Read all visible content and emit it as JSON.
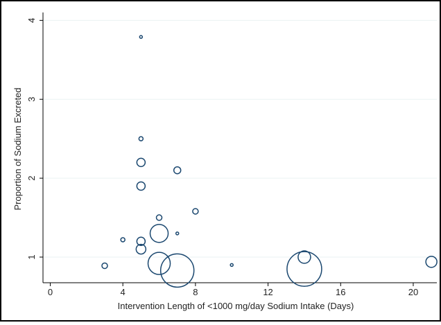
{
  "chart_data": {
    "type": "bubble",
    "xlabel": "Intervention Length of <1000 mg/day Sodium Intake (Days)",
    "ylabel": "Proportion of Sodium Excreted",
    "x": [
      3,
      4,
      5,
      5,
      5,
      5,
      5,
      5,
      6,
      6,
      6,
      7,
      7,
      7,
      8,
      10,
      14,
      14,
      21
    ],
    "values": [
      0.89,
      1.22,
      3.79,
      2.5,
      2.2,
      1.9,
      1.2,
      1.1,
      1.5,
      1.3,
      0.92,
      2.1,
      1.3,
      0.83,
      1.58,
      0.9,
      1.0,
      0.85,
      0.94
    ],
    "sizes": [
      16,
      9,
      4,
      9,
      36,
      36,
      36,
      49,
      16,
      169,
      256,
      25,
      4,
      576,
      16,
      4,
      81,
      625,
      64
    ],
    "color": "#1a476f",
    "xlim": [
      -0.4,
      21.3
    ],
    "ylim": [
      0.675,
      4.1
    ],
    "xticks": [
      0,
      4,
      8,
      12,
      16,
      20
    ],
    "yticks": [
      1,
      2,
      3,
      4
    ],
    "grid": true
  }
}
